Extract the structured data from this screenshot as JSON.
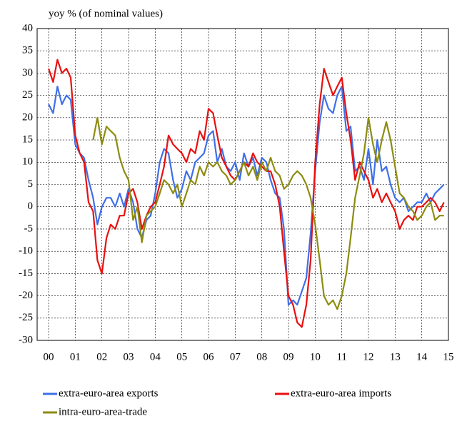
{
  "chart_data": {
    "type": "line",
    "title": "yoy % (of nominal values)",
    "x": [
      2000,
      2000.17,
      2000.33,
      2000.5,
      2000.67,
      2000.83,
      2001,
      2001.17,
      2001.33,
      2001.5,
      2001.67,
      2001.83,
      2002,
      2002.17,
      2002.33,
      2002.5,
      2002.67,
      2002.83,
      2003,
      2003.17,
      2003.33,
      2003.5,
      2003.67,
      2003.83,
      2004,
      2004.17,
      2004.33,
      2004.5,
      2004.67,
      2004.83,
      2005,
      2005.17,
      2005.33,
      2005.5,
      2005.67,
      2005.83,
      2006,
      2006.17,
      2006.33,
      2006.5,
      2006.67,
      2006.83,
      2007,
      2007.17,
      2007.33,
      2007.5,
      2007.67,
      2007.83,
      2008,
      2008.17,
      2008.33,
      2008.5,
      2008.67,
      2008.83,
      2009,
      2009.17,
      2009.33,
      2009.5,
      2009.67,
      2009.83,
      2010,
      2010.17,
      2010.33,
      2010.5,
      2010.67,
      2010.83,
      2011,
      2011.17,
      2011.33,
      2011.5,
      2011.67,
      2011.83,
      2012,
      2012.17,
      2012.33,
      2012.5,
      2012.67,
      2012.83,
      2013,
      2013.17,
      2013.33,
      2013.5,
      2013.67,
      2013.83,
      2014,
      2014.17,
      2014.33,
      2014.5,
      2014.67,
      2014.83
    ],
    "series": [
      {
        "name": "extra-euro-area exports",
        "color": "#3f6fe8",
        "values": [
          23,
          21,
          27,
          23,
          25,
          24,
          14,
          12,
          11,
          6,
          2,
          -4,
          0,
          2,
          2,
          0,
          3,
          0,
          4,
          1,
          -5,
          -7,
          -3,
          -2,
          3,
          10,
          13,
          12,
          6,
          2,
          4,
          8,
          6,
          10,
          11,
          12,
          16,
          17,
          10,
          13,
          9,
          8,
          10,
          6,
          12,
          9,
          11,
          7,
          11,
          10,
          6,
          3,
          2,
          -5,
          -22,
          -21,
          -22,
          -19,
          -16,
          -6,
          8,
          19,
          25,
          22,
          21,
          25,
          27,
          17,
          18,
          8,
          9,
          6,
          13,
          5,
          15,
          8,
          9,
          5,
          2,
          1,
          2,
          -1,
          0,
          1,
          1,
          3,
          1,
          3,
          4,
          5
        ]
      },
      {
        "name": "extra-euro-area imports",
        "color": "#e8100f",
        "values": [
          31,
          28,
          33,
          30,
          31,
          29,
          16,
          12,
          10,
          1,
          -1,
          -12,
          -15,
          -7,
          -4,
          -5,
          -2,
          -2,
          3,
          4,
          1,
          -5,
          -2,
          0,
          1,
          5,
          9,
          16,
          14,
          13,
          12,
          10,
          13,
          12,
          17,
          15,
          22,
          21,
          16,
          11,
          9,
          7,
          6,
          8,
          10,
          9,
          12,
          10,
          9,
          8,
          8,
          5,
          0,
          -10,
          -20,
          -22,
          -26,
          -27,
          -22,
          -12,
          10,
          23,
          31,
          28,
          25,
          27,
          29,
          21,
          15,
          6,
          10,
          8,
          6,
          2,
          4,
          1,
          3,
          1,
          -1,
          -5,
          -3,
          -2,
          -3,
          0,
          0,
          1,
          2,
          1,
          -1,
          1
        ]
      },
      {
        "name": "intra-euro-area-trade",
        "color": "#8c8c10",
        "values": [
          null,
          null,
          null,
          null,
          null,
          null,
          null,
          null,
          null,
          null,
          15,
          20,
          14,
          18,
          17,
          16,
          11,
          8,
          6,
          -3,
          0,
          -8,
          -2,
          -1,
          0,
          3,
          6,
          5,
          3,
          5,
          0,
          3,
          6,
          5,
          9,
          7,
          10,
          9,
          10,
          8,
          7,
          5,
          6,
          8,
          10,
          7,
          9,
          6,
          10,
          8,
          11,
          8,
          7,
          4,
          5,
          7,
          8,
          7,
          5,
          2,
          -4,
          -12,
          -20,
          -22,
          -21,
          -23,
          -20,
          -15,
          -7,
          2,
          7,
          12,
          20,
          14,
          10,
          15,
          19,
          15,
          9,
          3,
          2,
          0,
          -1,
          -3,
          -2,
          0,
          1,
          -3,
          -2,
          -2
        ]
      }
    ],
    "xlim": [
      1999.57,
      2015
    ],
    "xticks": [
      {
        "value": 2000,
        "label": "00"
      },
      {
        "value": 2001,
        "label": "01"
      },
      {
        "value": 2002,
        "label": "02"
      },
      {
        "value": 2003,
        "label": "03"
      },
      {
        "value": 2004,
        "label": "04"
      },
      {
        "value": 2005,
        "label": "05"
      },
      {
        "value": 2006,
        "label": "06"
      },
      {
        "value": 2007,
        "label": "07"
      },
      {
        "value": 2008,
        "label": "08"
      },
      {
        "value": 2009,
        "label": "09"
      },
      {
        "value": 2010,
        "label": "10"
      },
      {
        "value": 2011,
        "label": "11"
      },
      {
        "value": 2012,
        "label": "12"
      },
      {
        "value": 2013,
        "label": "13"
      },
      {
        "value": 2014,
        "label": "14"
      },
      {
        "value": 2015,
        "label": "15"
      }
    ],
    "ylim": [
      -30,
      40
    ],
    "yticks": [
      -30,
      -25,
      -20,
      -15,
      -10,
      -5,
      0,
      5,
      10,
      15,
      20,
      25,
      30,
      35,
      40
    ],
    "grid": true
  }
}
